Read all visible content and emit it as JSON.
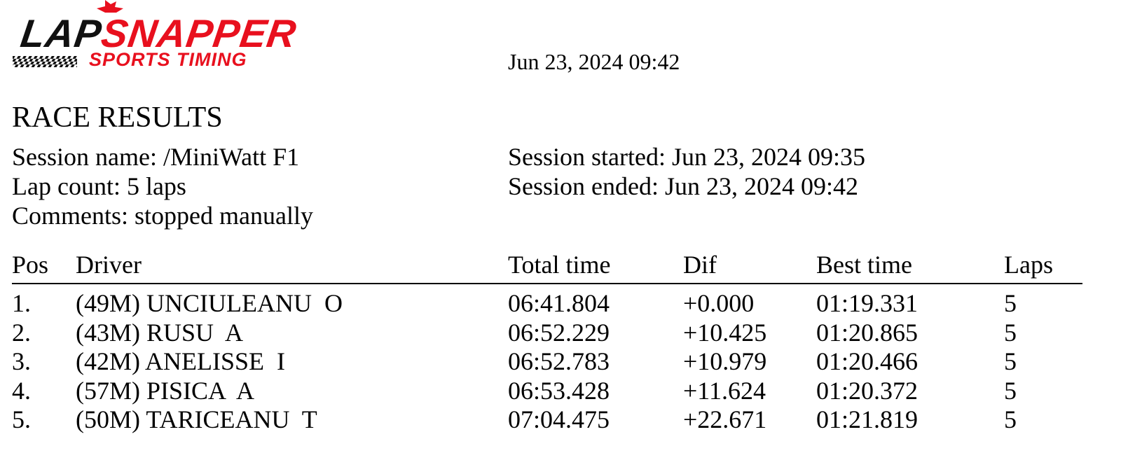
{
  "logo": {
    "name_dark": "LAP",
    "name_red": "SNAPPER",
    "tagline": "SPORTS TIMING"
  },
  "header": {
    "printed_at": "Jun 23, 2024 09:42",
    "title": "RACE RESULTS"
  },
  "session": {
    "name": "Session name: /MiniWatt F1",
    "lap_count": "Lap count: 5 laps",
    "comments": "Comments: stopped manually",
    "started": "Session started: Jun 23, 2024 09:35",
    "ended": "Session ended: Jun 23, 2024 09:42"
  },
  "table": {
    "columns": [
      "Pos",
      "Driver",
      "Total time",
      "Dif",
      "Best time",
      "Laps"
    ],
    "rows": [
      [
        "1.",
        "(49M) UNCIULEANU  O",
        "06:41.804",
        "+0.000",
        "01:19.331",
        "5"
      ],
      [
        "2.",
        "(43M) RUSU  A",
        "06:52.229",
        "+10.425",
        "01:20.865",
        "5"
      ],
      [
        "3.",
        "(42M) ANELISSE  I",
        "06:52.783",
        "+10.979",
        "01:20.466",
        "5"
      ],
      [
        "4.",
        "(57M) PISICA  A",
        "06:53.428",
        "+11.624",
        "01:20.372",
        "5"
      ],
      [
        "5.",
        "(50M) TARICEANU  T",
        "07:04.475",
        "+22.671",
        "01:21.819",
        "5"
      ]
    ]
  }
}
